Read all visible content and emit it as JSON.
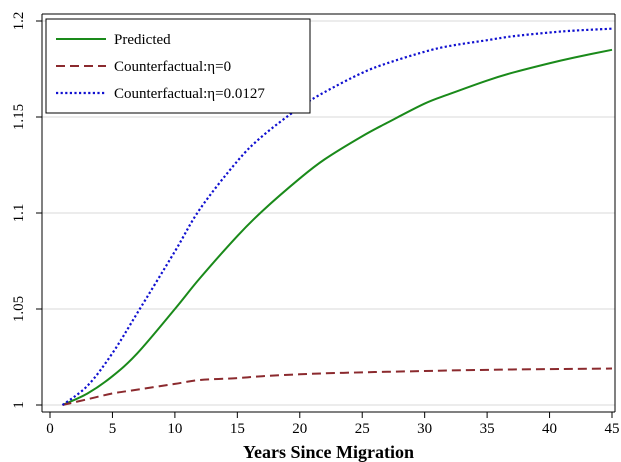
{
  "chart_data": {
    "type": "line",
    "title": "",
    "xlabel": "Years Since Migration",
    "ylabel": "",
    "xlim": [
      0,
      45
    ],
    "ylim": [
      1.0,
      1.2
    ],
    "xticks": [
      0,
      5,
      10,
      15,
      20,
      25,
      30,
      35,
      40,
      45
    ],
    "xtick_labels": [
      "0",
      "5",
      "10",
      "15",
      "20",
      "25",
      "30",
      "35",
      "40",
      "45"
    ],
    "yticks": [
      1.0,
      1.05,
      1.1,
      1.15,
      1.2
    ],
    "ytick_labels": [
      "1",
      "1.05",
      "1.1",
      "1.15",
      "1.2"
    ],
    "grid": true,
    "legend_position": "top-left",
    "series": [
      {
        "name": "Predicted",
        "color": "#1a8a1a",
        "style": "solid",
        "x": [
          1,
          3,
          5,
          7,
          10,
          12,
          15,
          17,
          20,
          22,
          25,
          27,
          30,
          32,
          35,
          37,
          40,
          42,
          45
        ],
        "y": [
          1.0,
          1.006,
          1.015,
          1.027,
          1.05,
          1.066,
          1.088,
          1.101,
          1.118,
          1.128,
          1.14,
          1.147,
          1.157,
          1.162,
          1.169,
          1.173,
          1.178,
          1.181,
          1.185
        ]
      },
      {
        "name": "Counterfactual:η=0",
        "color": "#8b2a2e",
        "style": "dashed",
        "x": [
          1,
          3,
          5,
          7,
          10,
          12,
          15,
          17,
          20,
          22,
          25,
          27,
          30,
          32,
          35,
          37,
          40,
          42,
          45
        ],
        "y": [
          1.0,
          1.003,
          1.006,
          1.008,
          1.011,
          1.013,
          1.014,
          1.015,
          1.016,
          1.0165,
          1.017,
          1.0173,
          1.0177,
          1.018,
          1.0183,
          1.0185,
          1.0187,
          1.0188,
          1.019
        ]
      },
      {
        "name": "Counterfactual:η=0.0127",
        "color": "#1010d0",
        "style": "dotted",
        "x": [
          1,
          3,
          5,
          7,
          10,
          12,
          15,
          17,
          20,
          22,
          25,
          27,
          30,
          32,
          35,
          37,
          40,
          42,
          45
        ],
        "y": [
          1.0,
          1.01,
          1.027,
          1.048,
          1.08,
          1.102,
          1.127,
          1.14,
          1.155,
          1.163,
          1.173,
          1.178,
          1.184,
          1.187,
          1.19,
          1.192,
          1.194,
          1.195,
          1.196
        ]
      }
    ]
  }
}
